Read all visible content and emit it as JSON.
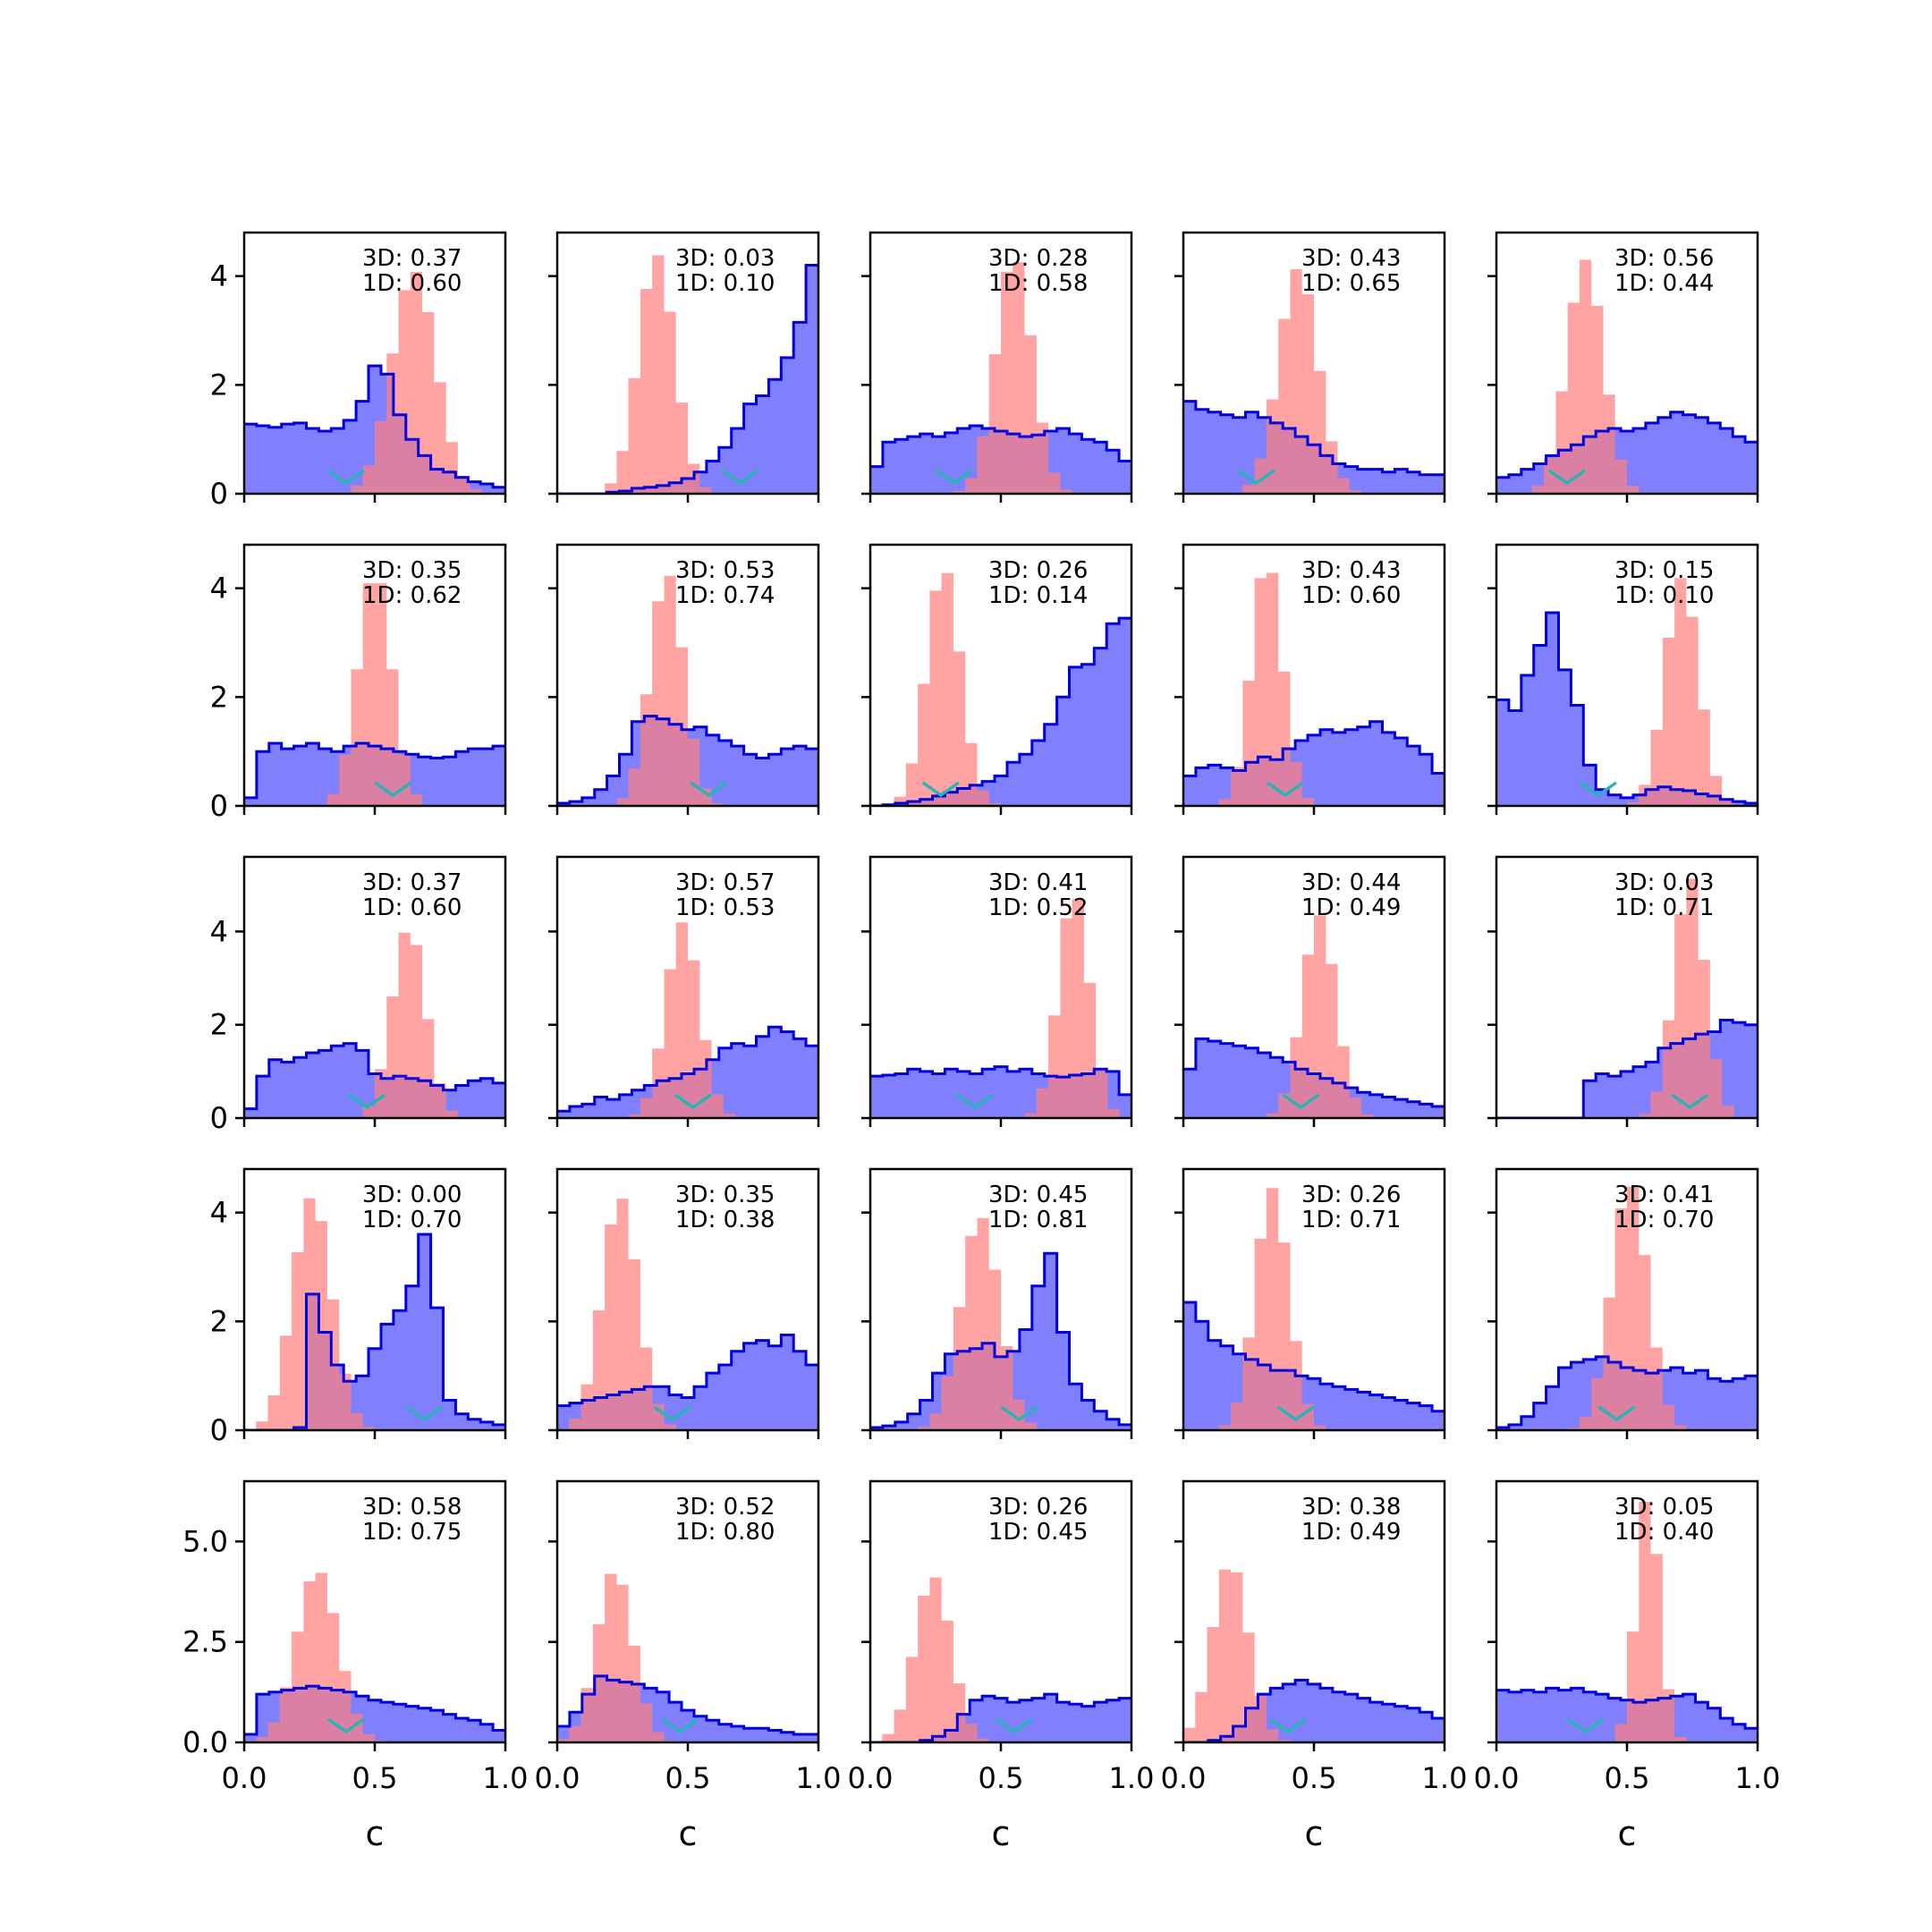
{
  "chart_data": {
    "type": "histogram-grid",
    "rows": 5,
    "cols": 5,
    "xlabel": "c",
    "xlim": [
      0,
      1
    ],
    "x_ticks": [
      0.0,
      0.5,
      1.0
    ],
    "x_tick_labels": [
      "0.0",
      "0.5",
      "1.0"
    ],
    "row_ylim": [
      [
        0,
        4.8
      ],
      [
        0,
        4.8
      ],
      [
        0,
        5.6
      ],
      [
        0,
        4.8
      ],
      [
        0,
        6.5
      ]
    ],
    "row_y_ticks": [
      [
        0,
        2,
        4
      ],
      [
        0,
        2,
        4
      ],
      [
        0,
        2,
        4
      ],
      [
        0,
        2,
        4
      ],
      [
        0.0,
        2.5,
        5.0
      ]
    ],
    "row_y_tick_labels": [
      [
        "0",
        "2",
        "4"
      ],
      [
        "0",
        "2",
        "4"
      ],
      [
        "0",
        "2",
        "4"
      ],
      [
        "0",
        "2",
        "4"
      ],
      [
        "0.0",
        "2.5",
        "5.0"
      ]
    ],
    "colors": {
      "blue_fill": "#8080ff",
      "blue_edge": "#0000dd",
      "red_fill": "#ff7f7f",
      "overlap_edge": "#7a0d5a",
      "marker": "#26b5b5"
    },
    "panels": [
      {
        "label_3d": "3D: 0.37",
        "label_1d": "1D: 0.60",
        "marker": 0.39,
        "blue": [
          1.28,
          1.25,
          1.22,
          1.28,
          1.3,
          1.2,
          1.15,
          1.2,
          1.35,
          1.7,
          2.35,
          2.2,
          1.45,
          1.0,
          0.7,
          0.45,
          0.4,
          0.3,
          0.22,
          0.18,
          0.12
        ],
        "red": {
          "mu": 0.65,
          "sigma": 0.085,
          "peak": 4.1
        }
      },
      {
        "label_3d": "3D: 0.03",
        "label_1d": "1D: 0.10",
        "marker": 0.7,
        "blue": [
          0,
          0,
          0,
          0,
          0.03,
          0.05,
          0.1,
          0.12,
          0.15,
          0.2,
          0.28,
          0.4,
          0.6,
          0.85,
          1.2,
          1.65,
          1.8,
          2.1,
          2.5,
          3.15,
          4.2
        ],
        "red": {
          "mu": 0.38,
          "sigma": 0.07,
          "peak": 4.4
        }
      },
      {
        "label_3d": "3D: 0.28",
        "label_1d": "1D: 0.58",
        "marker": 0.32,
        "blue": [
          0.5,
          0.95,
          1.0,
          1.05,
          1.1,
          1.05,
          1.12,
          1.2,
          1.25,
          1.2,
          1.15,
          1.1,
          1.05,
          1.08,
          1.15,
          1.2,
          1.1,
          1.0,
          0.95,
          0.8,
          0.6
        ],
        "red": {
          "mu": 0.55,
          "sigma": 0.07,
          "peak": 4.4
        }
      },
      {
        "label_3d": "3D: 0.43",
        "label_1d": "1D: 0.65",
        "marker": 0.28,
        "blue": [
          1.7,
          1.55,
          1.5,
          1.45,
          1.4,
          1.5,
          1.4,
          1.3,
          1.2,
          1.05,
          0.9,
          0.7,
          0.55,
          0.5,
          0.45,
          0.45,
          0.4,
          0.45,
          0.4,
          0.35,
          0.35
        ],
        "red": {
          "mu": 0.44,
          "sigma": 0.075,
          "peak": 4.15
        }
      },
      {
        "label_3d": "3D: 0.56",
        "label_1d": "1D: 0.44",
        "marker": 0.27,
        "blue": [
          0.3,
          0.35,
          0.45,
          0.55,
          0.7,
          0.8,
          0.9,
          1.05,
          1.15,
          1.2,
          1.15,
          1.2,
          1.3,
          1.4,
          1.5,
          1.45,
          1.4,
          1.3,
          1.2,
          1.05,
          0.95
        ],
        "red": {
          "mu": 0.34,
          "sigma": 0.07,
          "peak": 4.3
        }
      },
      {
        "label_3d": "3D: 0.35",
        "label_1d": "1D: 0.62",
        "marker": 0.57,
        "blue": [
          0.15,
          1.0,
          1.15,
          1.05,
          1.1,
          1.15,
          1.05,
          1.0,
          1.1,
          1.15,
          1.1,
          1.05,
          1.0,
          0.95,
          0.9,
          0.88,
          0.9,
          1.0,
          1.05,
          1.05,
          1.1
        ],
        "red": {
          "mu": 0.5,
          "sigma": 0.065,
          "peak": 4.35
        }
      },
      {
        "label_3d": "3D: 0.53",
        "label_1d": "1D: 0.74",
        "marker": 0.58,
        "blue": [
          0.05,
          0.08,
          0.15,
          0.3,
          0.55,
          0.95,
          1.55,
          1.65,
          1.6,
          1.5,
          1.4,
          1.45,
          1.3,
          1.2,
          1.1,
          0.95,
          0.88,
          0.95,
          1.05,
          1.1,
          1.05
        ],
        "red": {
          "mu": 0.42,
          "sigma": 0.065,
          "peak": 4.3
        }
      },
      {
        "label_3d": "3D: 0.26",
        "label_1d": "1D: 0.14",
        "marker": 0.27,
        "blue": [
          0,
          0.02,
          0.05,
          0.08,
          0.12,
          0.18,
          0.25,
          0.32,
          0.38,
          0.45,
          0.55,
          0.8,
          0.95,
          1.2,
          1.5,
          2.0,
          2.55,
          2.6,
          2.9,
          3.35,
          3.45
        ],
        "red": {
          "mu": 0.28,
          "sigma": 0.065,
          "peak": 4.4
        }
      },
      {
        "label_3d": "3D: 0.43",
        "label_1d": "1D: 0.60",
        "marker": 0.39,
        "blue": [
          0.55,
          0.7,
          0.75,
          0.7,
          0.65,
          0.8,
          0.9,
          0.85,
          1.05,
          1.2,
          1.3,
          1.4,
          1.35,
          1.4,
          1.45,
          1.55,
          1.35,
          1.25,
          1.1,
          0.95,
          0.6
        ],
        "red": {
          "mu": 0.32,
          "sigma": 0.06,
          "peak": 4.55
        }
      },
      {
        "label_3d": "3D: 0.15",
        "label_1d": "1D: 0.10",
        "marker": 0.39,
        "blue": [
          1.95,
          1.75,
          2.4,
          2.95,
          3.55,
          2.5,
          1.85,
          0.75,
          0.3,
          0.2,
          0.15,
          0.2,
          0.3,
          0.35,
          0.3,
          0.28,
          0.22,
          0.18,
          0.12,
          0.08,
          0.05
        ],
        "red": {
          "mu": 0.71,
          "sigma": 0.065,
          "peak": 4.2
        }
      },
      {
        "label_3d": "3D: 0.37",
        "label_1d": "1D: 0.60",
        "marker": 0.47,
        "blue": [
          0.2,
          0.9,
          1.25,
          1.2,
          1.3,
          1.4,
          1.45,
          1.55,
          1.6,
          1.45,
          0.95,
          0.85,
          0.9,
          0.85,
          0.8,
          0.7,
          0.6,
          0.7,
          0.8,
          0.85,
          0.75
        ],
        "red": {
          "mu": 0.63,
          "sigma": 0.065,
          "peak": 4.1
        }
      },
      {
        "label_3d": "3D: 0.57",
        "label_1d": "1D: 0.53",
        "marker": 0.52,
        "blue": [
          0.15,
          0.25,
          0.3,
          0.45,
          0.4,
          0.5,
          0.6,
          0.7,
          0.8,
          0.85,
          0.95,
          1.05,
          1.25,
          1.5,
          1.6,
          1.55,
          1.75,
          1.95,
          1.85,
          1.7,
          1.55
        ],
        "red": {
          "mu": 0.48,
          "sigma": 0.065,
          "peak": 4.2
        }
      },
      {
        "label_3d": "3D: 0.41",
        "label_1d": "1D: 0.52",
        "marker": 0.4,
        "blue": [
          0.9,
          0.92,
          0.95,
          1.05,
          1.0,
          0.95,
          1.05,
          1.0,
          0.95,
          1.05,
          1.1,
          1.0,
          1.05,
          0.95,
          0.9,
          0.88,
          0.92,
          0.95,
          1.05,
          1.0,
          0.5
        ],
        "red": {
          "mu": 0.78,
          "sigma": 0.06,
          "peak": 4.85
        }
      },
      {
        "label_3d": "3D: 0.44",
        "label_1d": "1D: 0.49",
        "marker": 0.45,
        "blue": [
          1.05,
          1.7,
          1.65,
          1.6,
          1.55,
          1.5,
          1.4,
          1.3,
          1.2,
          1.05,
          0.95,
          0.85,
          0.75,
          0.65,
          0.55,
          0.5,
          0.45,
          0.4,
          0.35,
          0.3,
          0.25
        ],
        "red": {
          "mu": 0.52,
          "sigma": 0.065,
          "peak": 4.35
        }
      },
      {
        "label_3d": "3D: 0.03",
        "label_1d": "1D: 0.71",
        "marker": 0.74,
        "blue": [
          0,
          0,
          0,
          0,
          0,
          0,
          0,
          0.8,
          0.95,
          0.9,
          1.0,
          1.1,
          1.2,
          1.5,
          1.6,
          1.7,
          1.8,
          1.85,
          2.1,
          2.05,
          2.0
        ],
        "red": {
          "mu": 0.74,
          "sigma": 0.06,
          "peak": 5.2
        }
      },
      {
        "label_3d": "3D: 0.00",
        "label_1d": "1D: 0.70",
        "marker": 0.69,
        "blue": [
          0,
          0,
          0,
          0,
          0.05,
          2.5,
          1.8,
          1.2,
          0.9,
          1.0,
          1.5,
          1.95,
          2.2,
          2.65,
          3.6,
          2.25,
          0.55,
          0.3,
          0.2,
          0.15,
          0.1
        ],
        "red": {
          "mu": 0.26,
          "sigma": 0.075,
          "peak": 4.3
        }
      },
      {
        "label_3d": "3D: 0.35",
        "label_1d": "1D: 0.38",
        "marker": 0.44,
        "blue": [
          0.45,
          0.5,
          0.55,
          0.6,
          0.65,
          0.7,
          0.75,
          0.8,
          0.8,
          0.65,
          0.6,
          0.8,
          1.05,
          1.2,
          1.45,
          1.6,
          1.65,
          1.55,
          1.75,
          1.45,
          1.2
        ],
        "red": {
          "mu": 0.24,
          "sigma": 0.07,
          "peak": 4.3
        }
      },
      {
        "label_3d": "3D: 0.45",
        "label_1d": "1D: 0.81",
        "marker": 0.57,
        "blue": [
          0.05,
          0.08,
          0.15,
          0.3,
          0.55,
          1.05,
          1.4,
          1.45,
          1.5,
          1.6,
          1.35,
          1.45,
          1.85,
          2.65,
          3.25,
          1.8,
          0.85,
          0.55,
          0.35,
          0.2,
          0.1
        ],
        "red": {
          "mu": 0.42,
          "sigma": 0.075,
          "peak": 3.95
        }
      },
      {
        "label_3d": "3D: 0.26",
        "label_1d": "1D: 0.71",
        "marker": 0.43,
        "blue": [
          2.35,
          2.0,
          1.65,
          1.55,
          1.4,
          1.3,
          1.2,
          1.1,
          1.1,
          1.0,
          0.95,
          0.85,
          0.8,
          0.75,
          0.7,
          0.65,
          0.6,
          0.55,
          0.5,
          0.45,
          0.35
        ],
        "red": {
          "mu": 0.34,
          "sigma": 0.065,
          "peak": 4.45
        }
      },
      {
        "label_3d": "3D: 0.41",
        "label_1d": "1D: 0.70",
        "marker": 0.46,
        "blue": [
          0.05,
          0.1,
          0.25,
          0.5,
          0.8,
          1.15,
          1.25,
          1.3,
          1.35,
          1.25,
          1.15,
          1.1,
          1.05,
          1.1,
          1.15,
          1.05,
          1.1,
          0.95,
          0.9,
          0.95,
          1.0
        ],
        "red": {
          "mu": 0.51,
          "sigma": 0.07,
          "peak": 4.55
        }
      },
      {
        "label_3d": "3D: 0.58",
        "label_1d": "1D: 0.75",
        "marker": 0.39,
        "blue": [
          0.2,
          1.2,
          1.25,
          1.3,
          1.35,
          1.4,
          1.35,
          1.3,
          1.25,
          1.15,
          1.05,
          1.0,
          0.95,
          0.9,
          0.85,
          0.8,
          0.7,
          0.6,
          0.55,
          0.45,
          0.3
        ],
        "red": {
          "mu": 0.28,
          "sigma": 0.08,
          "peak": 4.3
        }
      },
      {
        "label_3d": "3D: 0.52",
        "label_1d": "1D: 0.80",
        "marker": 0.47,
        "blue": [
          0.4,
          0.75,
          1.2,
          1.65,
          1.55,
          1.5,
          1.45,
          1.35,
          1.25,
          1.0,
          0.8,
          0.65,
          0.55,
          0.45,
          0.4,
          0.35,
          0.35,
          0.3,
          0.25,
          0.2,
          0.2
        ],
        "red": {
          "mu": 0.22,
          "sigma": 0.07,
          "peak": 4.3
        }
      },
      {
        "label_3d": "3D: 0.26",
        "label_1d": "1D: 0.45",
        "marker": 0.55,
        "blue": [
          0,
          0,
          0,
          0,
          0.05,
          0.15,
          0.3,
          0.7,
          1.05,
          1.15,
          1.1,
          1.0,
          1.05,
          1.1,
          1.2,
          1.0,
          0.95,
          0.9,
          1.0,
          1.05,
          1.1
        ],
        "red": {
          "mu": 0.24,
          "sigma": 0.07,
          "peak": 4.15
        }
      },
      {
        "label_3d": "3D: 0.38",
        "label_1d": "1D: 0.49",
        "marker": 0.4,
        "blue": [
          0,
          0,
          0.05,
          0.15,
          0.4,
          0.85,
          1.2,
          1.35,
          1.45,
          1.55,
          1.45,
          1.35,
          1.25,
          1.2,
          1.1,
          1.0,
          0.95,
          0.9,
          0.85,
          0.75,
          0.6
        ],
        "red": {
          "mu": 0.18,
          "sigma": 0.07,
          "peak": 4.5
        }
      },
      {
        "label_3d": "3D: 0.05",
        "label_1d": "1D: 0.40",
        "marker": 0.34,
        "blue": [
          1.3,
          1.25,
          1.3,
          1.25,
          1.35,
          1.3,
          1.35,
          1.25,
          1.2,
          1.1,
          1.05,
          1.0,
          1.05,
          1.1,
          1.15,
          1.2,
          1.0,
          0.85,
          0.6,
          0.45,
          0.35
        ],
        "red": {
          "mu": 0.58,
          "sigma": 0.045,
          "peak": 6.2
        }
      }
    ]
  }
}
